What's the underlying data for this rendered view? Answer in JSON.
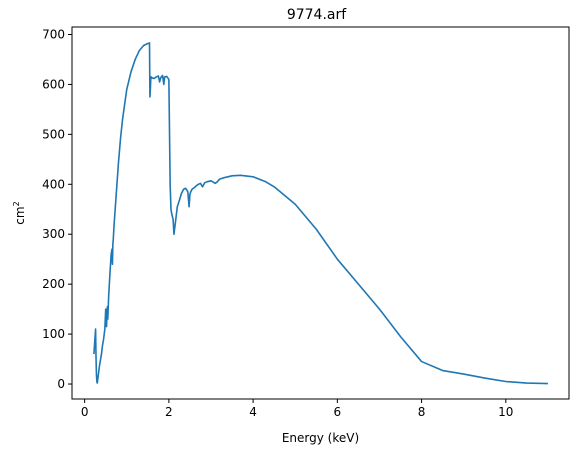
{
  "chart_data": {
    "type": "line",
    "title": "9774.arf",
    "xlabel": "Energy (keV)",
    "ylabel_base": "cm",
    "ylabel_sup": "2",
    "xlim": [
      -0.3,
      11.5
    ],
    "ylim": [
      -30,
      715
    ],
    "xticks": [
      0,
      2,
      4,
      6,
      8,
      10
    ],
    "yticks": [
      0,
      100,
      200,
      300,
      400,
      500,
      600,
      700
    ],
    "grid": false,
    "series": [
      {
        "color": "#1f77b4",
        "x": [
          0.22,
          0.24,
          0.26,
          0.27,
          0.28,
          0.29,
          0.3,
          0.32,
          0.35,
          0.38,
          0.4,
          0.42,
          0.45,
          0.48,
          0.5,
          0.51,
          0.52,
          0.53,
          0.54,
          0.55,
          0.57,
          0.6,
          0.63,
          0.65,
          0.66,
          0.67,
          0.68,
          0.7,
          0.75,
          0.8,
          0.85,
          0.9,
          1.0,
          1.1,
          1.2,
          1.3,
          1.4,
          1.5,
          1.54,
          1.55,
          1.56,
          1.57,
          1.58,
          1.6,
          1.65,
          1.7,
          1.75,
          1.78,
          1.8,
          1.82,
          1.85,
          1.88,
          1.9,
          1.95,
          2.0,
          2.03,
          2.05,
          2.07,
          2.1,
          2.12,
          2.15,
          2.2,
          2.25,
          2.3,
          2.35,
          2.4,
          2.45,
          2.48,
          2.5,
          2.52,
          2.55,
          2.6,
          2.65,
          2.7,
          2.75,
          2.8,
          2.85,
          2.9,
          3.0,
          3.1,
          3.15,
          3.2,
          3.3,
          3.5,
          3.7,
          4.0,
          4.3,
          4.5,
          5.0,
          5.5,
          6.0,
          6.5,
          7.0,
          7.5,
          8.0,
          8.5,
          9.0,
          9.5,
          10.0,
          10.5,
          11.0
        ],
        "y": [
          60,
          85,
          110,
          55,
          20,
          5,
          2,
          15,
          35,
          50,
          60,
          75,
          90,
          110,
          150,
          130,
          115,
          140,
          155,
          130,
          175,
          220,
          260,
          270,
          240,
          280,
          290,
          320,
          380,
          440,
          490,
          530,
          590,
          625,
          650,
          668,
          678,
          682,
          683,
          575,
          590,
          610,
          615,
          613,
          612,
          615,
          617,
          605,
          612,
          615,
          618,
          600,
          615,
          616,
          610,
          400,
          350,
          340,
          330,
          300,
          320,
          355,
          368,
          382,
          390,
          392,
          385,
          355,
          380,
          385,
          390,
          393,
          397,
          400,
          402,
          395,
          403,
          405,
          407,
          402,
          405,
          410,
          413,
          417,
          418,
          415,
          405,
          395,
          360,
          310,
          250,
          200,
          150,
          95,
          45,
          27,
          20,
          12,
          5,
          2,
          1
        ]
      }
    ]
  }
}
